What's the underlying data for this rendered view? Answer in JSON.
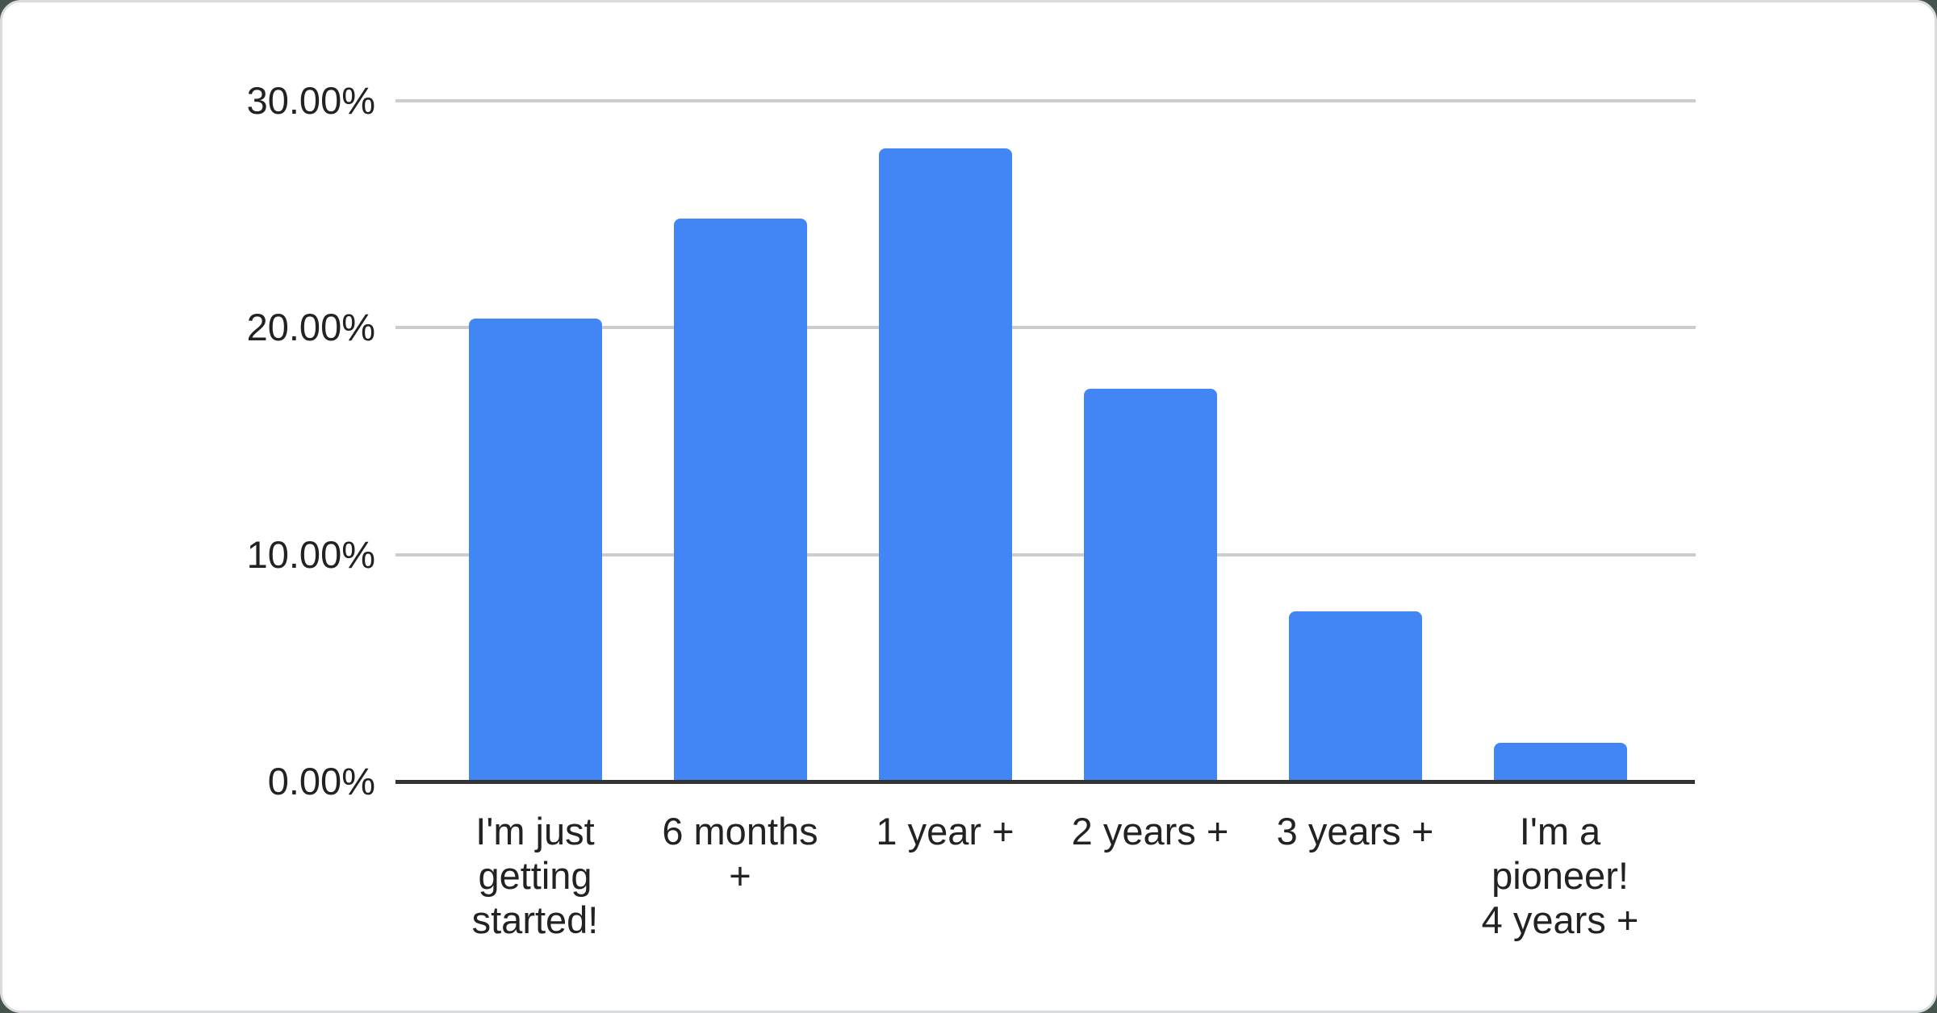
{
  "chart_data": {
    "type": "bar",
    "title": "",
    "xlabel": "",
    "ylabel": "",
    "categories": [
      "I'm just getting started!",
      "6 months +",
      "1 year +",
      "2 years +",
      "3 years +",
      "I'm a pioneer! 4 years +"
    ],
    "category_label_lines": [
      [
        "I'm just",
        "getting",
        "started!"
      ],
      [
        "6 months",
        "+"
      ],
      [
        "1 year +"
      ],
      [
        "2 years +"
      ],
      [
        "3 years +"
      ],
      [
        "I'm a",
        "pioneer!",
        "4 years +"
      ]
    ],
    "values": [
      20.4,
      24.8,
      27.9,
      17.3,
      7.5,
      1.7
    ],
    "unit": "%",
    "ylim": [
      0,
      30
    ],
    "ytick_values": [
      0,
      10,
      20,
      30
    ],
    "ytick_labels": [
      "0.00%",
      "10.00%",
      "20.00%",
      "30.00%"
    ],
    "grid": true,
    "legend": "none",
    "colors": {
      "bar": "#4285f4",
      "gridline": "#cccccc",
      "axis_line": "#333333",
      "tick_text": "#222222",
      "card_background": "#ffffff",
      "card_border": "#d9dcde",
      "page_background": "#46554c"
    }
  }
}
